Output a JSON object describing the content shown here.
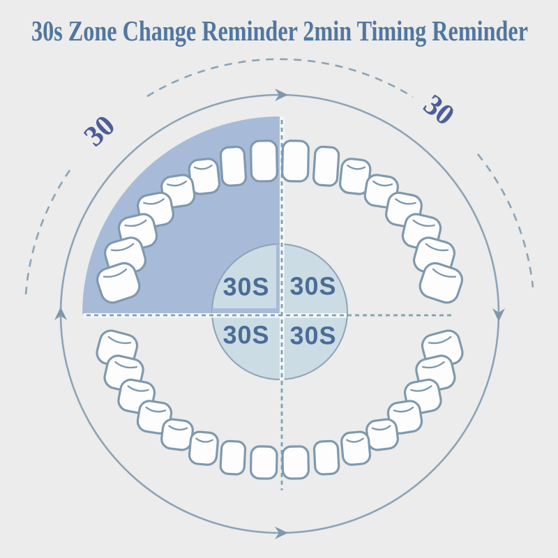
{
  "title": "30s Zone Change Reminder 2min Timing Reminder",
  "diagram": {
    "quadrant_labels": [
      "30S",
      "30S",
      "30S",
      "30S"
    ],
    "interval_labels": [
      "30",
      "30"
    ],
    "highlighted_zone": "upper-left",
    "rotation_direction": "clockwise",
    "teeth": {
      "upper_count": 16,
      "lower_count": 16
    },
    "colors": {
      "background": "#ebeceb",
      "title_text": "#52769f",
      "ring_stroke": "#8ba3b7",
      "arrow_fill": "#7e98ad",
      "wedge_fill": "#a7bbd8",
      "dial_fill": "#cbdce5",
      "dial_band": "#f4f7f7",
      "quadrant_label_text": "#4b6c95",
      "interval_label_text": "#4d5e96",
      "dash_blue": "#7fa0b5",
      "tooth_fill": "#fdfdfe",
      "tooth_stroke": "#7e99ae"
    }
  }
}
